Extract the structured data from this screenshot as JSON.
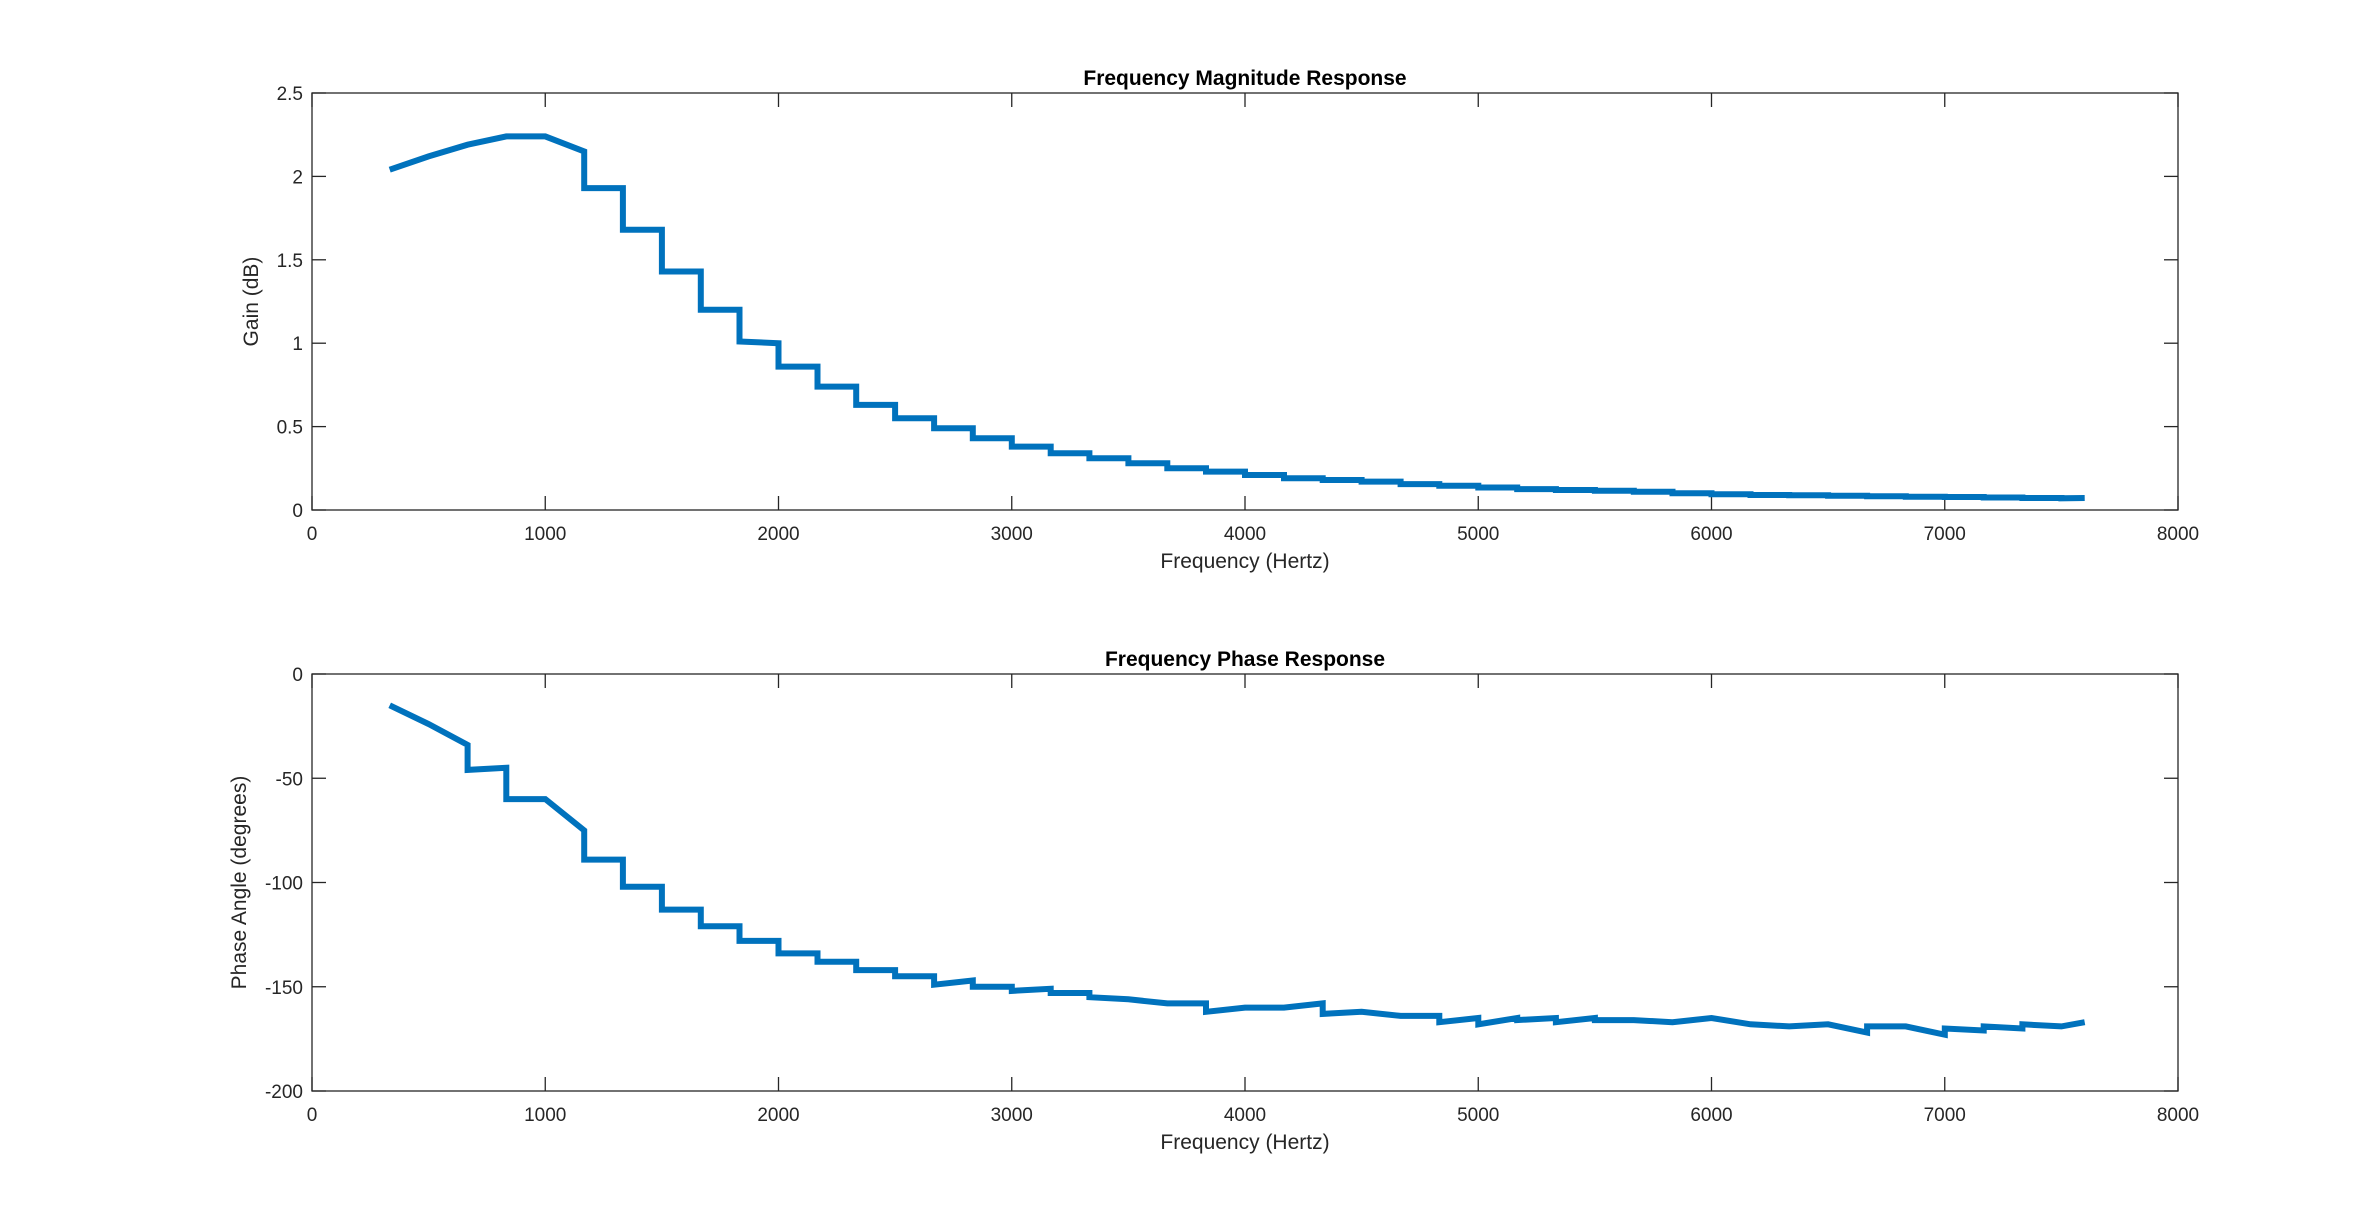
{
  "chart_data": [
    {
      "type": "line",
      "title": "Frequency Magnitude Response",
      "xlabel": "Frequency (Hertz)",
      "ylabel": "Gain (dB)",
      "xlim": [
        0,
        8000
      ],
      "ylim": [
        0,
        2.5
      ],
      "xticks": [
        0,
        1000,
        2000,
        3000,
        4000,
        5000,
        6000,
        7000,
        8000
      ],
      "yticks": [
        0,
        0.5,
        1,
        1.5,
        2,
        2.5
      ],
      "xtick_labels": [
        "0",
        "1000",
        "2000",
        "3000",
        "4000",
        "5000",
        "6000",
        "7000",
        "8000"
      ],
      "ytick_labels": [
        "0",
        "0.5",
        "1",
        "1.5",
        "2",
        "2.5"
      ],
      "grid": false,
      "color": "#0072BD",
      "series": [
        {
          "x": [
            333,
            500,
            500,
            667,
            667,
            833,
            833,
            1000,
            1000,
            1167,
            1167,
            1333,
            1333,
            1500,
            1500,
            1667,
            1667,
            1833,
            1833,
            2000,
            2000,
            2167,
            2167,
            2333,
            2333,
            2500,
            2500,
            2667,
            2667,
            2833,
            2833,
            3000,
            3000,
            3167,
            3167,
            3333,
            3333,
            3500,
            3500,
            3667,
            3667,
            3833,
            3833,
            4000,
            4000,
            4167,
            4167,
            4333,
            4333,
            4500,
            4500,
            4667,
            4667,
            4833,
            4833,
            5000,
            5000,
            5167,
            5167,
            5333,
            5333,
            5500,
            5500,
            5667,
            5667,
            5833,
            5833,
            6000,
            6000,
            6167,
            6167,
            6333,
            6333,
            6500,
            6500,
            6667,
            6667,
            6833,
            6833,
            7000,
            7000,
            7167,
            7167,
            7333,
            7333,
            7500,
            7500,
            7600
          ],
          "y": [
            2.04,
            2.12,
            2.12,
            2.19,
            2.19,
            2.24,
            2.24,
            2.24,
            2.24,
            2.15,
            1.93,
            1.93,
            1.68,
            1.68,
            1.43,
            1.43,
            1.2,
            1.2,
            1.01,
            1.0,
            0.86,
            0.86,
            0.74,
            0.74,
            0.63,
            0.63,
            0.55,
            0.55,
            0.49,
            0.49,
            0.43,
            0.43,
            0.38,
            0.38,
            0.34,
            0.34,
            0.31,
            0.31,
            0.28,
            0.28,
            0.25,
            0.25,
            0.23,
            0.23,
            0.21,
            0.21,
            0.19,
            0.19,
            0.18,
            0.18,
            0.17,
            0.17,
            0.155,
            0.155,
            0.145,
            0.145,
            0.135,
            0.135,
            0.125,
            0.125,
            0.12,
            0.12,
            0.115,
            0.115,
            0.11,
            0.11,
            0.1,
            0.1,
            0.095,
            0.095,
            0.09,
            0.09,
            0.088,
            0.088,
            0.085,
            0.085,
            0.082,
            0.082,
            0.08,
            0.08,
            0.078,
            0.078,
            0.075,
            0.075,
            0.072,
            0.072,
            0.07,
            0.072
          ]
        }
      ]
    },
    {
      "type": "line",
      "title": "Frequency Phase Response",
      "xlabel": "Frequency (Hertz)",
      "ylabel": "Phase Angle (degrees)",
      "xlim": [
        0,
        8000
      ],
      "ylim": [
        -200,
        0
      ],
      "xticks": [
        0,
        1000,
        2000,
        3000,
        4000,
        5000,
        6000,
        7000,
        8000
      ],
      "yticks": [
        -200,
        -150,
        -100,
        -50,
        0
      ],
      "xtick_labels": [
        "0",
        "1000",
        "2000",
        "3000",
        "4000",
        "5000",
        "6000",
        "7000",
        "8000"
      ],
      "ytick_labels": [
        "-200",
        "-150",
        "-100",
        "-50",
        "0"
      ],
      "grid": false,
      "color": "#0072BD",
      "series": [
        {
          "x": [
            333,
            500,
            667,
            667,
            833,
            833,
            1000,
            1167,
            1167,
            1333,
            1333,
            1500,
            1500,
            1667,
            1667,
            1833,
            1833,
            2000,
            2000,
            2167,
            2167,
            2333,
            2333,
            2500,
            2500,
            2667,
            2667,
            2833,
            2833,
            3000,
            3000,
            3167,
            3167,
            3333,
            3333,
            3500,
            3667,
            3833,
            3833,
            4000,
            4167,
            4333,
            4333,
            4500,
            4667,
            4833,
            4833,
            5000,
            5000,
            5167,
            5167,
            5333,
            5333,
            5500,
            5500,
            5667,
            5667,
            5833,
            6000,
            6167,
            6333,
            6500,
            6667,
            6667,
            6833,
            7000,
            7000,
            7167,
            7167,
            7333,
            7333,
            7500,
            7600
          ],
          "y": [
            -15,
            -24,
            -34,
            -46,
            -45,
            -60,
            -60,
            -75,
            -89,
            -89,
            -102,
            -102,
            -113,
            -113,
            -121,
            -121,
            -128,
            -128,
            -134,
            -134,
            -138,
            -138,
            -142,
            -142,
            -145,
            -145,
            -149,
            -147,
            -150,
            -150,
            -152,
            -151,
            -153,
            -153,
            -155,
            -156,
            -158,
            -158,
            -162,
            -160,
            -160,
            -158,
            -163,
            -162,
            -164,
            -164,
            -167,
            -165,
            -168,
            -165,
            -166,
            -165,
            -167,
            -165,
            -166,
            -166,
            -166,
            -167,
            -165,
            -168,
            -169,
            -168,
            -172,
            -169,
            -169,
            -173,
            -170,
            -171,
            -169,
            -170,
            -168,
            -169,
            -167
          ]
        }
      ]
    }
  ]
}
